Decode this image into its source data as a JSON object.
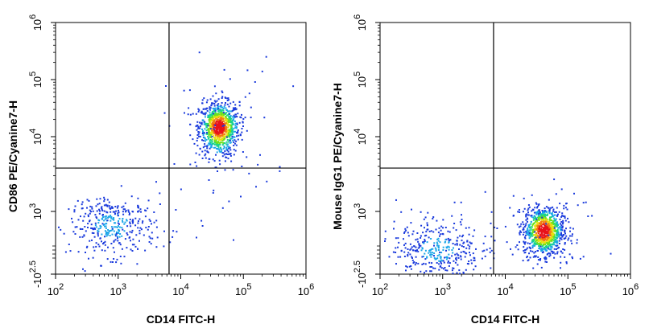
{
  "chart_data": [
    {
      "type": "scatter",
      "style": "density-dot-plot",
      "xlabel": "CD14 FITC-H",
      "ylabel": "CD86 PE/Cyanine7-H",
      "x_scale": "log",
      "y_scale": "biexponential",
      "x_tick_labels": [
        "10^2",
        "10^3",
        "10^4",
        "10^5",
        "10^6"
      ],
      "y_tick_labels": [
        "-10^2.5",
        "10^3",
        "10^4",
        "10^5",
        "10^6"
      ],
      "xlim": [
        100,
        1000000
      ],
      "ylim": [
        -316,
        1000000
      ],
      "gate": {
        "x": 6500,
        "y": 3800
      },
      "populations": [
        {
          "label": "CD14+ CD86+",
          "center_x": 40000,
          "center_y": 15000,
          "relative_density": "high"
        },
        {
          "label": "CD14- CD86-",
          "center_x": 800,
          "center_y": 700,
          "relative_density": "low"
        }
      ]
    },
    {
      "type": "scatter",
      "style": "density-dot-plot",
      "xlabel": "CD14 FITC-H",
      "ylabel": "Mouse IgG1 PE/Cyanine7-H",
      "x_scale": "log",
      "y_scale": "biexponential",
      "x_tick_labels": [
        "10^2",
        "10^3",
        "10^4",
        "10^5",
        "10^6"
      ],
      "y_tick_labels": [
        "-10^2.5",
        "10^3",
        "10^4",
        "10^5",
        "10^6"
      ],
      "xlim": [
        100,
        1000000
      ],
      "ylim": [
        -316,
        1000000
      ],
      "gate": {
        "x": 6500,
        "y": 3800
      },
      "populations": [
        {
          "label": "CD14+",
          "center_x": 40000,
          "center_y": 600,
          "relative_density": "high"
        },
        {
          "label": "CD14-",
          "center_x": 800,
          "center_y": 200,
          "relative_density": "low"
        }
      ]
    }
  ]
}
